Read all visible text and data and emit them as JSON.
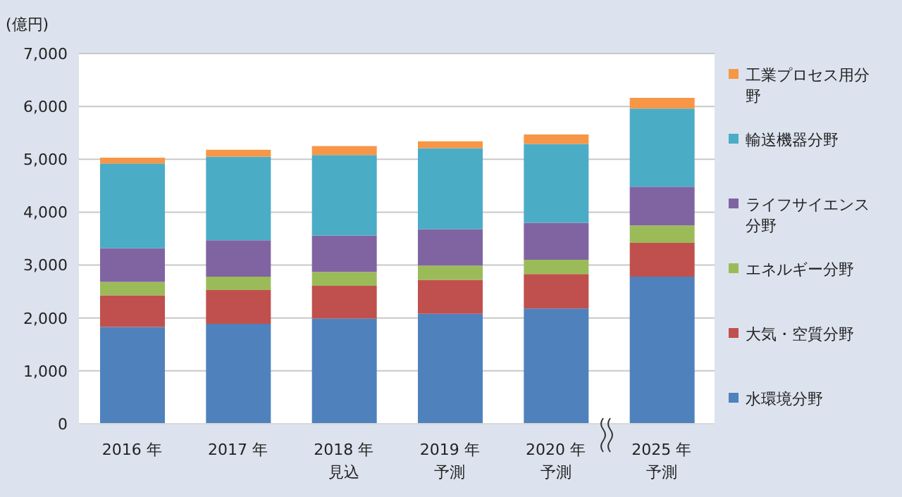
{
  "chart_data": {
    "type": "bar",
    "stacked": true,
    "ylabel": "(億円)",
    "categories": [
      "2016 年",
      "2017 年",
      "2018 年見込",
      "2019 年予測",
      "2020 年予測",
      "2025 年予測"
    ],
    "series": [
      {
        "name": "水環境分野",
        "color": "#4f81bd",
        "values": [
          1830,
          1890,
          1990,
          2080,
          2180,
          2780
        ]
      },
      {
        "name": "大気・空質分野",
        "color": "#c0504d",
        "values": [
          600,
          640,
          620,
          640,
          650,
          640
        ]
      },
      {
        "name": "エネルギー分野",
        "color": "#9bbb59",
        "values": [
          250,
          250,
          260,
          270,
          270,
          330
        ]
      },
      {
        "name": "ライフサイエンス分野",
        "color": "#8064a2",
        "values": [
          640,
          690,
          690,
          690,
          700,
          730
        ]
      },
      {
        "name": "輸送機器分野",
        "color": "#4bacc6",
        "values": [
          1600,
          1580,
          1520,
          1530,
          1490,
          1480
        ]
      },
      {
        "name": "工業プロセス用分野",
        "color": "#f79646",
        "values": [
          110,
          130,
          170,
          130,
          180,
          200
        ]
      }
    ],
    "ylim": [
      0,
      7000
    ],
    "yticks": [
      0,
      {
        "value": 1000,
        "label": "1,000"
      },
      {
        "value": 2000,
        "label": "2,000"
      },
      {
        "value": 3000,
        "label": "3,000"
      },
      {
        "value": 4000,
        "label": "4,000"
      },
      {
        "value": 5000,
        "label": "5,000"
      },
      {
        "value": 6000,
        "label": "6,000"
      },
      {
        "value": 7000,
        "label": "7,000"
      }
    ],
    "grid": "y",
    "legend": "right"
  }
}
